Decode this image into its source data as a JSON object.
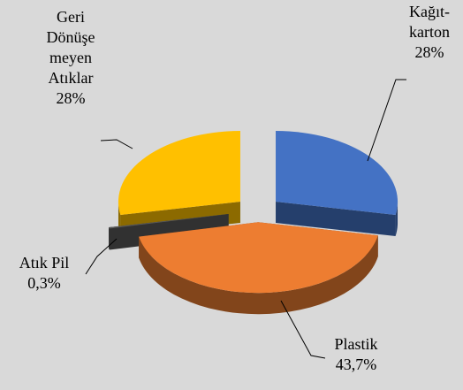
{
  "chart_data": {
    "type": "pie",
    "categories": [
      "Kağıt-\nkarton",
      "Plastik",
      "Atık Pil",
      "Geri\nDönüşe\nmeyen\nAtıklar"
    ],
    "values": [
      28,
      43.7,
      0.3,
      28
    ],
    "value_labels": [
      "28%",
      "43,7%",
      "0,3%",
      "28%"
    ],
    "colors": [
      "#4472c4",
      "#ed7d31",
      "#595959",
      "#ffc000"
    ]
  }
}
